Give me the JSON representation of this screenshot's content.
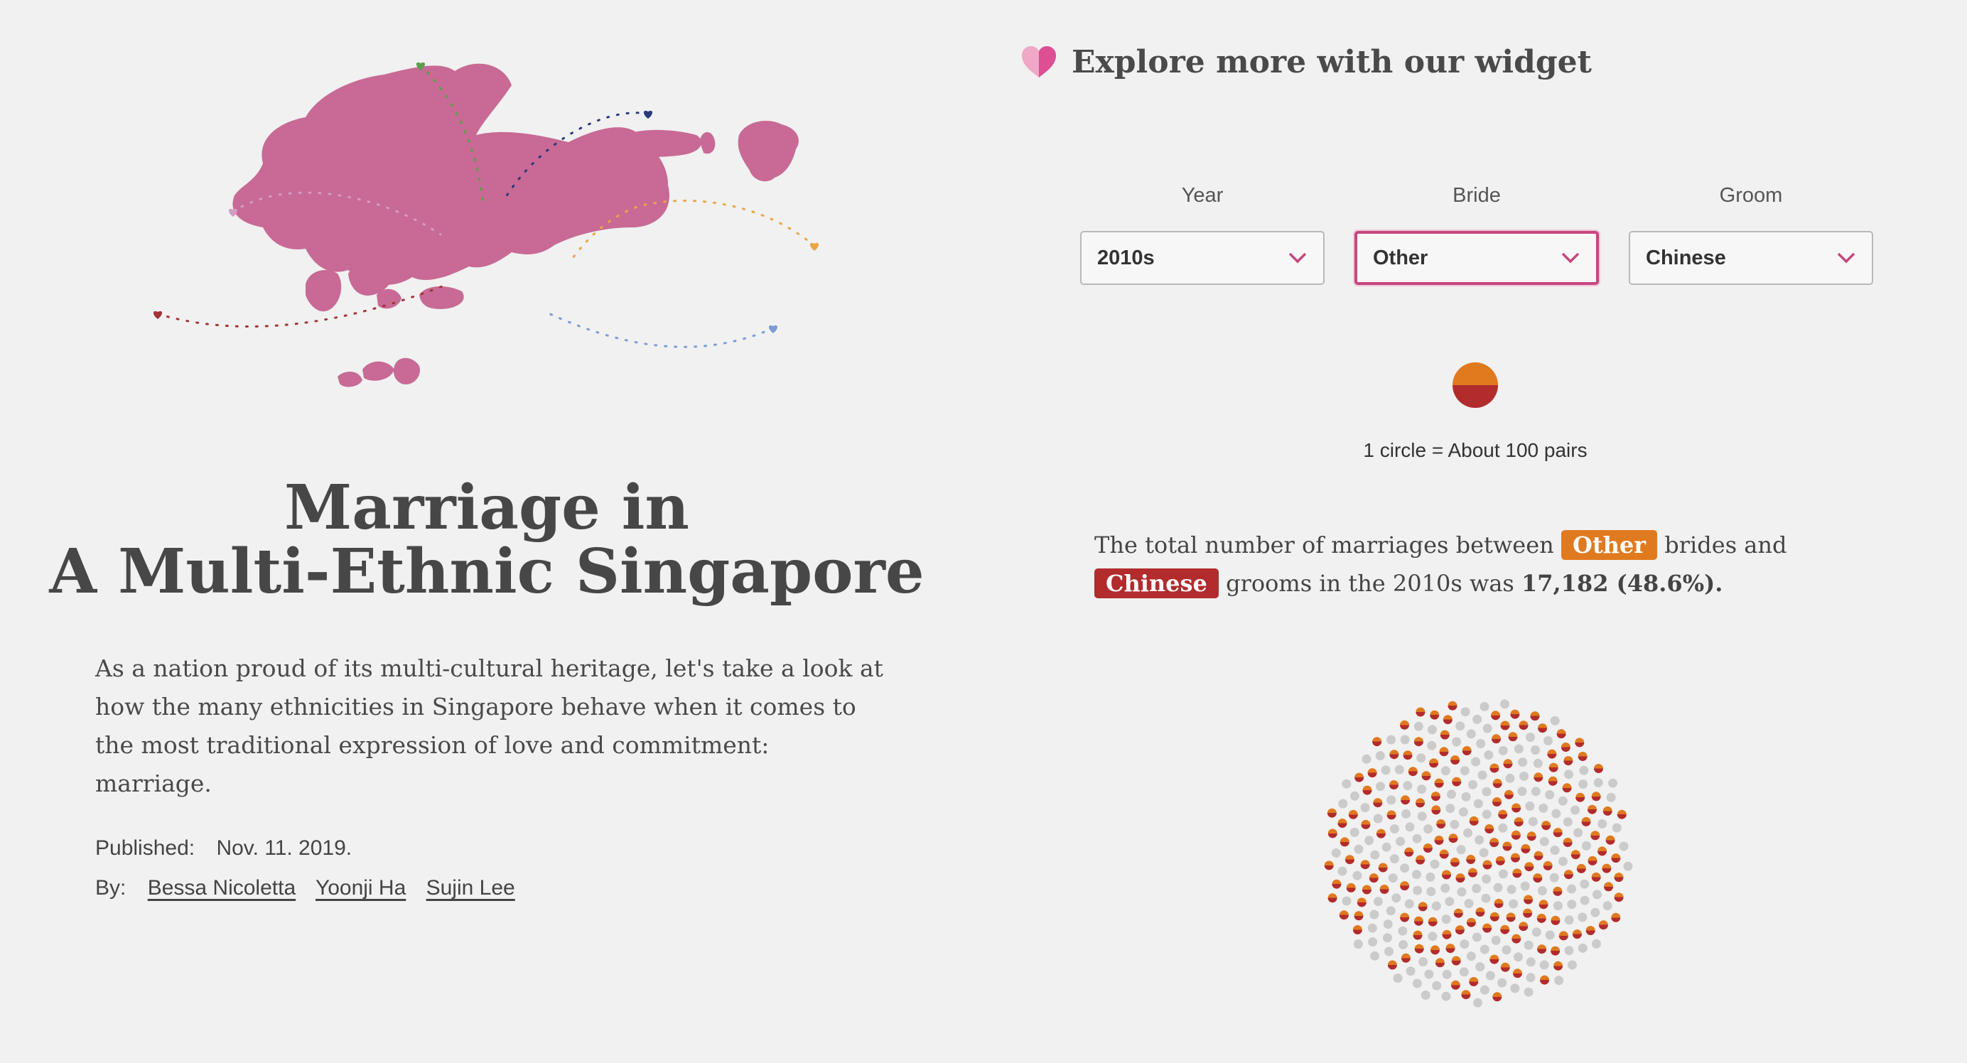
{
  "colors": {
    "map_pink": "#c86a95",
    "bride": "#e07a1f",
    "groom": "#b22b2d",
    "neutral_dot": "#cbcbcb",
    "active_border": "#c6477f",
    "heart_light": "#f0a8c7",
    "heart_dark": "#dc4f92"
  },
  "hero": {
    "title_line1": "Marriage in",
    "title_line2": "A Multi-Ethnic Singapore",
    "intro": "As a nation proud of its multi-cultural heritage, let's take a look at how the many ethnicities in Singapore behave when it comes to the most traditional expression of love and commitment: marriage.",
    "map_icon": "singapore-map-illustration",
    "heart_colors": [
      "#5d9e4a",
      "#2a3a7a",
      "#d49bc4",
      "#e8a646",
      "#a23336",
      "#7f9bd8"
    ]
  },
  "meta": {
    "published_label": "Published:",
    "published_date": "Nov. 11. 2019.",
    "by_label": "By:",
    "authors": [
      "Bessa Nicoletta",
      "Yoonji Ha",
      "Sujin Lee"
    ]
  },
  "widget": {
    "icon": "heart-icon",
    "title": "Explore more with our widget",
    "filters": {
      "year": {
        "label": "Year",
        "value": "2010s"
      },
      "bride": {
        "label": "Bride",
        "value": "Other"
      },
      "groom": {
        "label": "Groom",
        "value": "Chinese"
      }
    },
    "legend_text": "1 circle = About 100 pairs",
    "summary": {
      "part1": "The total number of marriages between",
      "bride": "Other",
      "part2": "brides and",
      "groom": "Chinese",
      "part3": "grooms in the 2010s was",
      "value": "17,182 (48.6%)."
    },
    "chart": {
      "total_circles": 354,
      "highlighted_share": 0.486
    }
  }
}
